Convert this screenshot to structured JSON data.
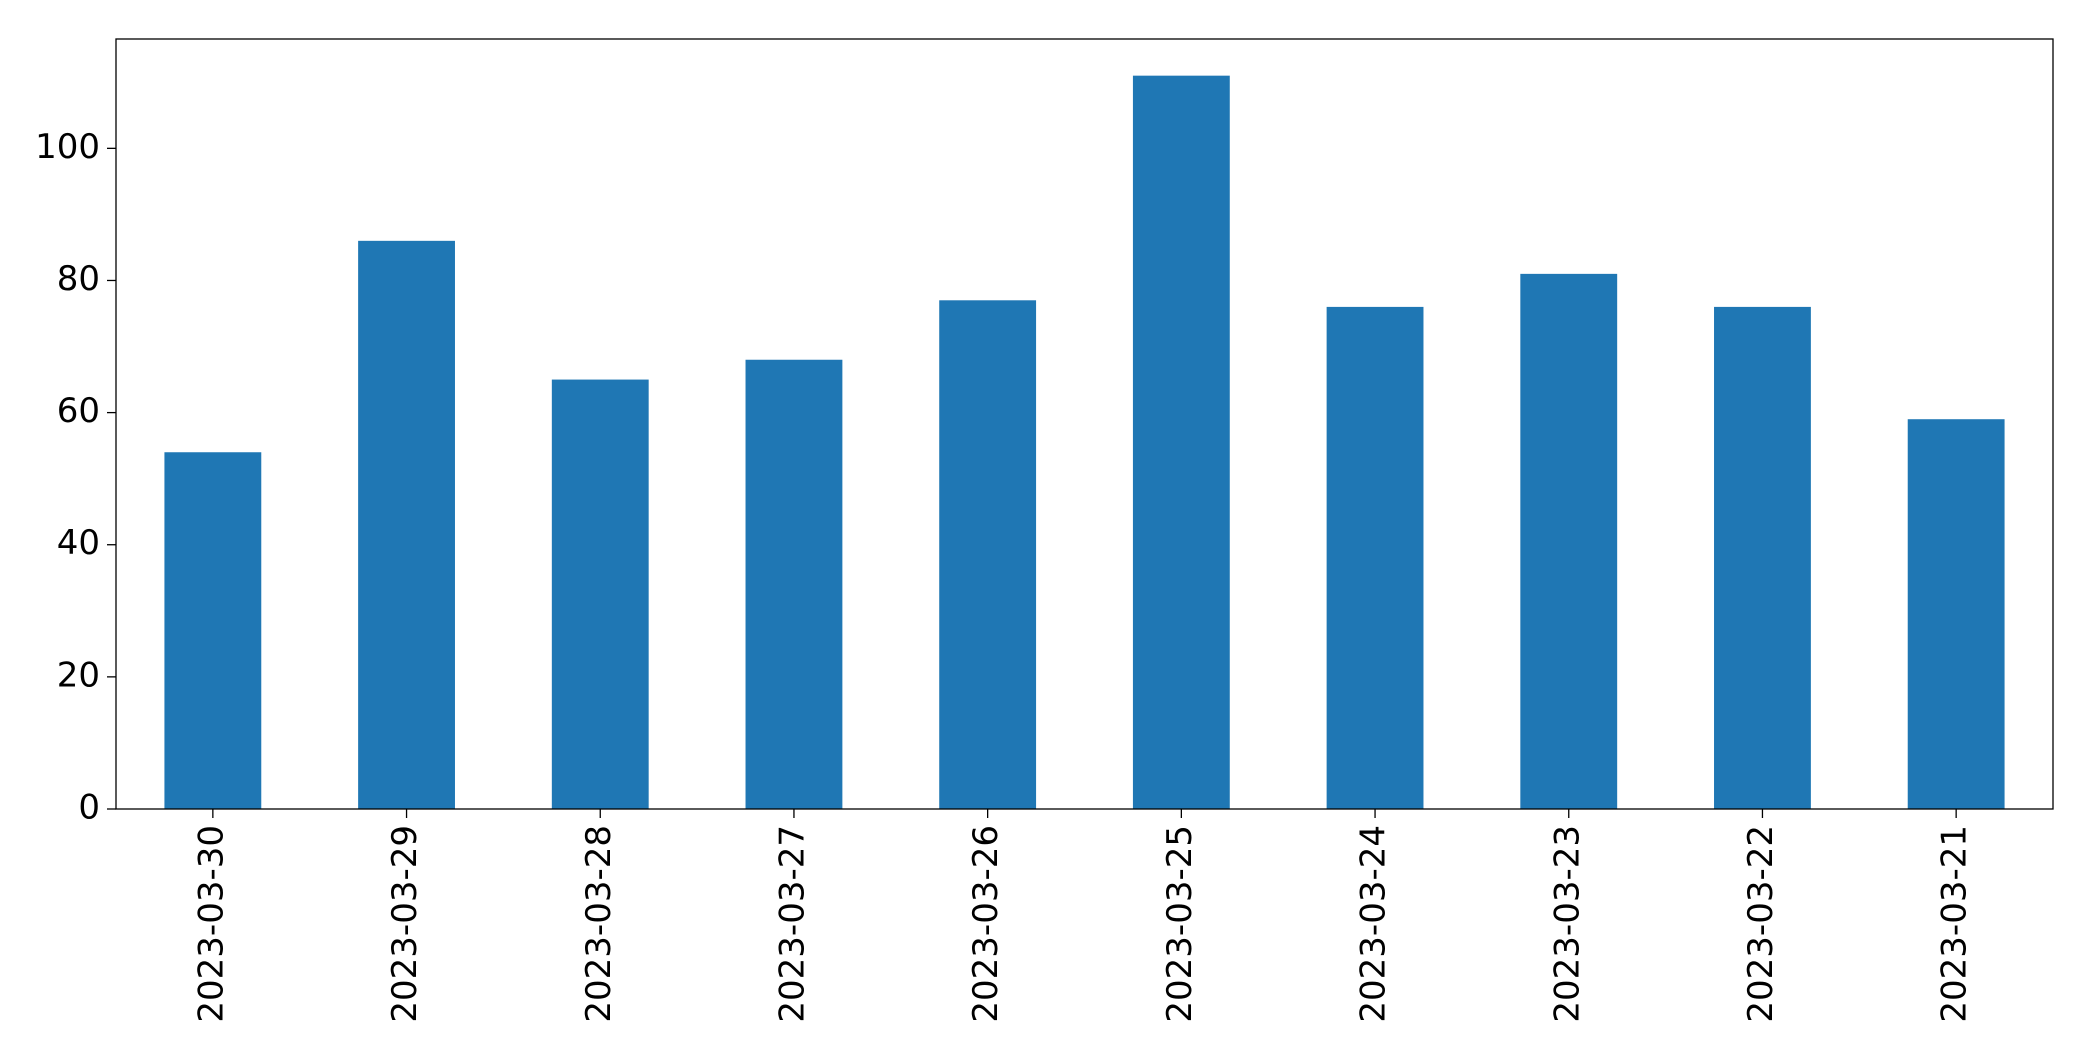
{
  "chart_data": {
    "type": "bar",
    "categories": [
      "2023-03-30",
      "2023-03-29",
      "2023-03-28",
      "2023-03-27",
      "2023-03-26",
      "2023-03-25",
      "2023-03-24",
      "2023-03-23",
      "2023-03-22",
      "2023-03-21"
    ],
    "values": [
      54,
      86,
      65,
      68,
      77,
      111,
      76,
      81,
      76,
      59
    ],
    "color": "#1f77b4",
    "ylim": [
      0,
      116.55
    ],
    "yticks": [
      0,
      20,
      40,
      60,
      80,
      100
    ],
    "grid": false
  }
}
